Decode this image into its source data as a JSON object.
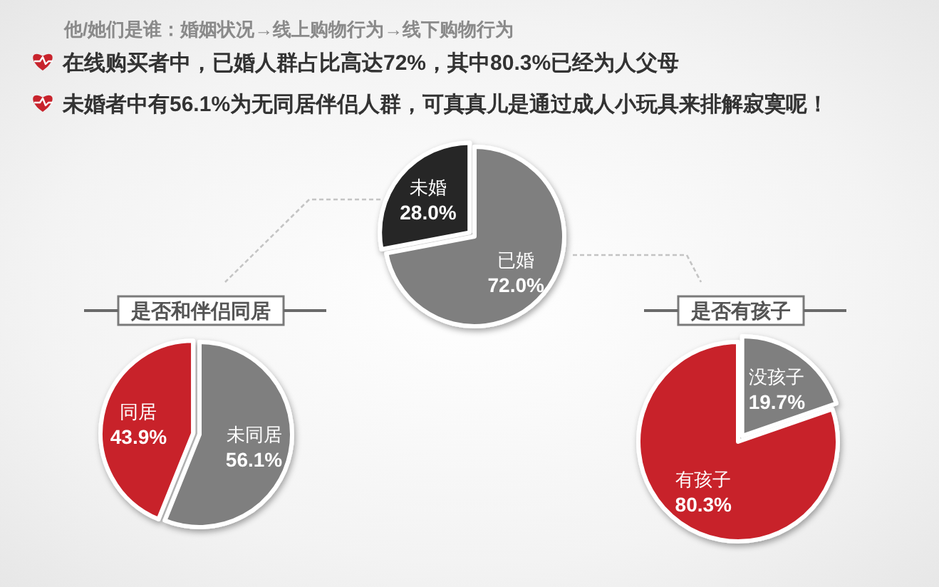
{
  "chart_data": [
    {
      "type": "other",
      "title": "他/她们是谁：婚姻状况→线上购物行为→线下购物行为",
      "annotations": [
        "在线购买者中，已婚人群占比高达72%，其中80.3%已经为人父母",
        "未婚者中有56.1%为无同居伴侣人群，可真真儿是通过成人小玩具来排解寂寞呢！"
      ]
    },
    {
      "type": "pie",
      "categories": [
        "已婚",
        "未婚"
      ],
      "values": [
        72.0,
        28.0
      ],
      "colors": [
        "#7f7f7f",
        "#262626"
      ],
      "value_labels": [
        "72.0%",
        "28.0%"
      ]
    },
    {
      "type": "pie",
      "title": "是否和伴侣同居",
      "categories": [
        "未同居",
        "同居"
      ],
      "values": [
        56.1,
        43.9
      ],
      "colors": [
        "#7f7f7f",
        "#c8232c"
      ],
      "value_labels": [
        "56.1%",
        "43.9%"
      ]
    },
    {
      "type": "pie",
      "title": "是否有孩子",
      "categories": [
        "没孩子",
        "有孩子"
      ],
      "values": [
        19.7,
        80.3
      ],
      "colors": [
        "#7f7f7f",
        "#c8232c"
      ],
      "value_labels": [
        "19.7%",
        "80.3%"
      ]
    }
  ]
}
